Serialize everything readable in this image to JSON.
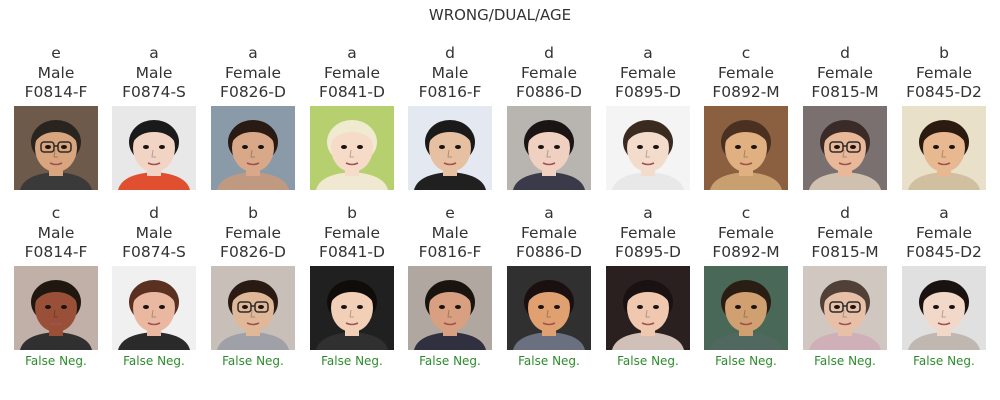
{
  "title": "WRONG/DUAL/AGE",
  "colors": {
    "text": "#333333",
    "false_neg": "#2e8b2e"
  },
  "rows": [
    {
      "cells": [
        {
          "choice": "e",
          "gender": "Male",
          "id": "F0814-F",
          "flag": ""
        },
        {
          "choice": "a",
          "gender": "Male",
          "id": "F0874-S",
          "flag": ""
        },
        {
          "choice": "a",
          "gender": "Female",
          "id": "F0826-D",
          "flag": ""
        },
        {
          "choice": "a",
          "gender": "Female",
          "id": "F0841-D",
          "flag": ""
        },
        {
          "choice": "d",
          "gender": "Male",
          "id": "F0816-F",
          "flag": ""
        },
        {
          "choice": "d",
          "gender": "Female",
          "id": "F0886-D",
          "flag": ""
        },
        {
          "choice": "a",
          "gender": "Female",
          "id": "F0895-D",
          "flag": ""
        },
        {
          "choice": "c",
          "gender": "Female",
          "id": "F0892-M",
          "flag": ""
        },
        {
          "choice": "d",
          "gender": "Female",
          "id": "F0815-M",
          "flag": ""
        },
        {
          "choice": "b",
          "gender": "Female",
          "id": "F0845-D2",
          "flag": ""
        }
      ]
    },
    {
      "cells": [
        {
          "choice": "c",
          "gender": "Male",
          "id": "F0814-F",
          "flag": "False Neg."
        },
        {
          "choice": "d",
          "gender": "Male",
          "id": "F0874-S",
          "flag": "False Neg."
        },
        {
          "choice": "b",
          "gender": "Female",
          "id": "F0826-D",
          "flag": "False Neg."
        },
        {
          "choice": "b",
          "gender": "Female",
          "id": "F0841-D",
          "flag": "False Neg."
        },
        {
          "choice": "e",
          "gender": "Male",
          "id": "F0816-F",
          "flag": "False Neg."
        },
        {
          "choice": "a",
          "gender": "Female",
          "id": "F0886-D",
          "flag": "False Neg."
        },
        {
          "choice": "a",
          "gender": "Female",
          "id": "F0895-D",
          "flag": "False Neg."
        },
        {
          "choice": "c",
          "gender": "Female",
          "id": "F0892-M",
          "flag": "False Neg."
        },
        {
          "choice": "d",
          "gender": "Female",
          "id": "F0815-M",
          "flag": "False Neg."
        },
        {
          "choice": "a",
          "gender": "Female",
          "id": "F0845-D2",
          "flag": "False Neg."
        }
      ]
    }
  ]
}
